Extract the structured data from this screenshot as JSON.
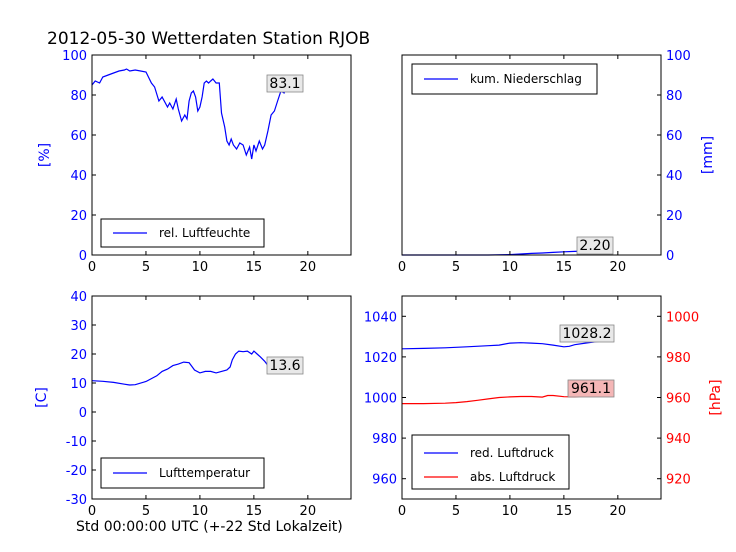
{
  "title": "2012-05-30 Wetterdaten Station RJOB",
  "xlabel": "Std 00:00:00 UTC (+-22 Std Lokalzeit)",
  "colors": {
    "blue": "#0000ff",
    "red": "#ff0000",
    "ann_red_bg": "#f4b6b6",
    "ann_grey_bg": "#e8e8e8"
  },
  "chart_data": [
    {
      "type": "line",
      "ylabel": "[%]",
      "xlim": [
        0,
        24
      ],
      "ylim": [
        0,
        100
      ],
      "xticks": [
        "0",
        "5",
        "10",
        "15",
        "20"
      ],
      "yticks": [
        "0",
        "20",
        "40",
        "60",
        "80",
        "100"
      ],
      "legend": {
        "label": "rel. Luftfeuchte",
        "placement": "lower-left"
      },
      "annotation": "83.1",
      "series": [
        {
          "name": "rel. Luftfeuchte",
          "color": "#0000ff",
          "x": [
            0,
            0.3,
            0.7,
            1,
            1.5,
            2,
            2.5,
            3,
            3.2,
            3.5,
            4,
            4.5,
            5,
            5.5,
            5.8,
            6.2,
            6.5,
            7,
            7.2,
            7.5,
            7.8,
            8,
            8.3,
            8.6,
            8.8,
            9,
            9.2,
            9.4,
            9.6,
            9.8,
            10,
            10.2,
            10.4,
            10.6,
            10.8,
            11,
            11.2,
            11.5,
            11.8,
            12,
            12.3,
            12.5,
            12.7,
            12.9,
            13.1,
            13.4,
            13.7,
            14,
            14.3,
            14.6,
            14.8,
            15,
            15.2,
            15.5,
            15.8,
            16,
            16.3,
            16.6,
            16.9,
            17.2,
            17.5,
            17.8,
            18.1,
            18.4,
            18.7,
            19,
            19.3
          ],
          "y": [
            85,
            87,
            86,
            89,
            90,
            91,
            92,
            92.5,
            93,
            92,
            92.5,
            92,
            91.5,
            86,
            84,
            77,
            79,
            74,
            76,
            73,
            78,
            73,
            67,
            70,
            68,
            77,
            81,
            82,
            79,
            72,
            74,
            79,
            86,
            87,
            86,
            87,
            88,
            86,
            86,
            71,
            64,
            57,
            55,
            58,
            55,
            53,
            56,
            55,
            50,
            54,
            48,
            55,
            52,
            57,
            53,
            55,
            62,
            70,
            72,
            77,
            82,
            81,
            85,
            84,
            83,
            82,
            83.1
          ]
        }
      ]
    },
    {
      "type": "line",
      "ylabel": "[mm]",
      "xlim": [
        0,
        24
      ],
      "ylim": [
        0,
        100
      ],
      "xticks": [
        "0",
        "5",
        "10",
        "15",
        "20"
      ],
      "yticks": [
        "0",
        "20",
        "40",
        "60",
        "80",
        "100"
      ],
      "legend": {
        "label": "kum. Niederschlag",
        "placement": "upper-left"
      },
      "annotation": "2.20",
      "series": [
        {
          "name": "kum. Niederschlag",
          "color": "#0000ff",
          "x": [
            0,
            4,
            8,
            10,
            11,
            12,
            13,
            14,
            15,
            16,
            17,
            18,
            19,
            19.3
          ],
          "y": [
            0,
            0,
            0,
            0.2,
            0.5,
            0.8,
            1.0,
            1.3,
            1.6,
            1.8,
            2.0,
            2.1,
            2.2,
            2.2
          ]
        }
      ]
    },
    {
      "type": "line",
      "ylabel": "[C]",
      "xlim": [
        0,
        24
      ],
      "ylim": [
        -30,
        40
      ],
      "xticks": [
        "0",
        "5",
        "10",
        "15",
        "20"
      ],
      "yticks": [
        "-30",
        "-20",
        "-10",
        "0",
        "10",
        "20",
        "30",
        "40"
      ],
      "legend": {
        "label": "Lufttemperatur",
        "placement": "lower-left"
      },
      "annotation": "13.6",
      "series": [
        {
          "name": "Lufttemperatur",
          "color": "#0000ff",
          "x": [
            0,
            1,
            2,
            3,
            3.5,
            4,
            5,
            5.5,
            6,
            6.5,
            7,
            7.5,
            8,
            8.5,
            9,
            9.2,
            9.5,
            10,
            10.5,
            11,
            11.5,
            12,
            12.5,
            12.8,
            13,
            13.3,
            13.6,
            14,
            14.4,
            14.8,
            15,
            15.3,
            15.6,
            16,
            16.5,
            17,
            17.5,
            18,
            18.5,
            19,
            19.3
          ],
          "y": [
            10.8,
            10.6,
            10.2,
            9.6,
            9.3,
            9.4,
            10.5,
            11.5,
            12.5,
            14,
            14.8,
            16,
            16.5,
            17.2,
            17,
            16,
            14.5,
            13.5,
            14,
            14,
            13.5,
            14,
            14.5,
            15.5,
            18,
            20,
            21,
            20.8,
            21,
            20,
            21,
            20,
            19,
            17.5,
            15,
            14.6,
            14,
            13.5,
            13.3,
            13.4,
            13.6
          ]
        }
      ]
    },
    {
      "type": "line",
      "ylabel_left": "",
      "ylabel_right": "[hPa]",
      "xlim": [
        0,
        24
      ],
      "ylim_left": [
        950,
        1050
      ],
      "ylim_right": [
        910,
        1010
      ],
      "xticks": [
        "0",
        "5",
        "10",
        "15",
        "20"
      ],
      "yticks_left": [
        "960",
        "980",
        "1000",
        "1020",
        "1040"
      ],
      "yticks_right": [
        "920",
        "940",
        "960",
        "980",
        "1000"
      ],
      "legend": {
        "labels": [
          "red. Luftdruck",
          "abs. Luftdruck"
        ],
        "placement": "lower-left"
      },
      "annotations": [
        "1028.2",
        "961.1"
      ],
      "series": [
        {
          "name": "red. Luftdruck",
          "color": "#0000ff",
          "axis": "left",
          "x": [
            0,
            2,
            4,
            6,
            8,
            9,
            10,
            11,
            12,
            13,
            14,
            15,
            15.5,
            16,
            17,
            18,
            19,
            19.3
          ],
          "y": [
            1024,
            1024.2,
            1024.5,
            1025,
            1025.5,
            1025.8,
            1026.8,
            1027,
            1026.8,
            1026.5,
            1025.8,
            1025,
            1025.2,
            1026,
            1026.8,
            1027.5,
            1028,
            1028.2
          ]
        },
        {
          "name": "abs. Luftdruck",
          "color": "#ff0000",
          "axis": "right",
          "x": [
            0,
            2,
            4,
            5,
            6,
            7,
            8,
            9,
            10,
            11,
            12,
            13,
            13.5,
            14,
            15,
            16,
            17,
            18,
            19,
            19.3
          ],
          "y": [
            957,
            957,
            957.2,
            957.5,
            958,
            958.6,
            959.3,
            960,
            960.3,
            960.5,
            960.5,
            960.2,
            961,
            961,
            960.4,
            960.3,
            960.8,
            961,
            961.1,
            961.1
          ]
        }
      ]
    }
  ]
}
